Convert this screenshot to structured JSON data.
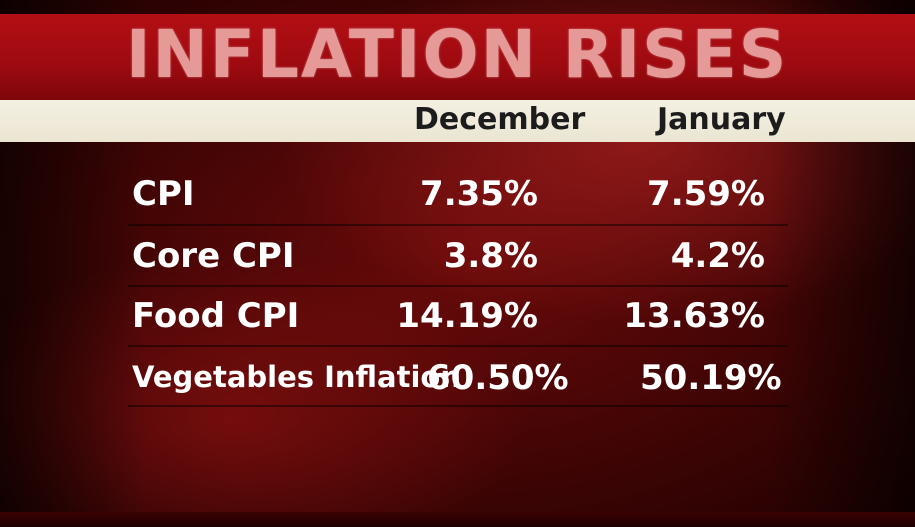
{
  "title": "INFLATION RISES",
  "columns": [
    "December",
    "January"
  ],
  "rows": [
    {
      "label": "CPI",
      "december": "7.35%",
      "january": "7.59%"
    },
    {
      "label": "Core CPI",
      "december": "3.8%",
      "january": "4.2%"
    },
    {
      "label": "Food CPI",
      "december": "14.19%",
      "january": "13.63%"
    },
    {
      "label": "Vegetables Inflation",
      "december": "60.50%",
      "january": "50.19%"
    }
  ],
  "colors": {
    "title_band": "#b30f14",
    "title_text": "#e69a98",
    "header_band": "#f4f0e2",
    "header_text": "#1c1c1c",
    "row_text": "#ffffff"
  }
}
